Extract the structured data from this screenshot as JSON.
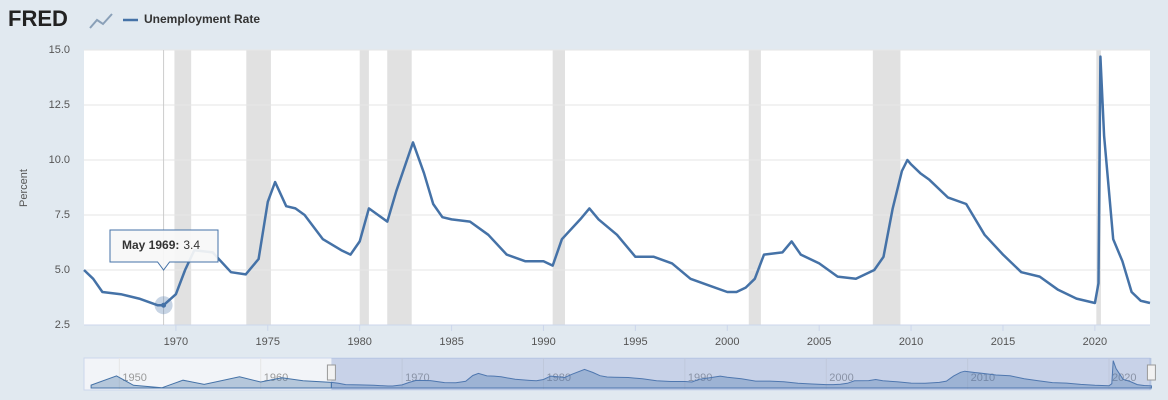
{
  "header": {
    "logo": "FRED"
  },
  "chart_data": {
    "type": "line",
    "y_label": "Percent",
    "series": [
      {
        "name": "Unemployment Rate",
        "color": "#4572a7",
        "values": [
          5.0,
          4.6,
          4.0,
          3.9,
          3.7,
          3.4,
          3.4,
          3.9,
          5.0,
          5.9,
          5.8,
          4.9,
          4.8,
          5.5,
          8.1,
          9.0,
          7.9,
          7.8,
          7.5,
          6.4,
          5.9,
          5.7,
          6.3,
          7.8,
          7.5,
          7.2,
          8.6,
          10.8,
          9.4,
          8.0,
          7.4,
          7.3,
          7.2,
          6.6,
          5.7,
          5.4,
          5.4,
          5.2,
          6.4,
          7.3,
          7.8,
          7.3,
          6.6,
          5.6,
          5.6,
          5.3,
          4.6,
          4.3,
          4.0,
          4.0,
          4.2,
          4.6,
          5.7,
          5.8,
          6.3,
          5.7,
          5.3,
          4.7,
          4.6,
          5.0,
          5.6,
          7.8,
          9.5,
          10.0,
          9.8,
          9.4,
          9.1,
          8.3,
          8.0,
          6.6,
          5.7,
          4.9,
          4.7,
          4.1,
          3.7,
          3.5,
          4.4,
          14.7,
          11.1,
          6.4,
          5.4,
          4.0,
          3.6,
          3.5
        ]
      }
    ],
    "x": [
      1965.0,
      1965.5,
      1966.0,
      1967.0,
      1968.0,
      1969.0,
      1969.33,
      1970.0,
      1970.5,
      1971.0,
      1972.0,
      1973.0,
      1973.8,
      1974.5,
      1975.0,
      1975.4,
      1976.0,
      1976.5,
      1977.0,
      1978.0,
      1979.0,
      1979.5,
      1980.0,
      1980.5,
      1981.0,
      1981.5,
      1982.0,
      1982.9,
      1983.5,
      1984.0,
      1984.5,
      1985.0,
      1986.0,
      1987.0,
      1988.0,
      1989.0,
      1990.0,
      1990.5,
      1991.0,
      1992.0,
      1992.5,
      1993.0,
      1994.0,
      1995.0,
      1996.0,
      1997.0,
      1998.0,
      1999.0,
      2000.0,
      2000.5,
      2001.0,
      2001.5,
      2002.0,
      2003.0,
      2003.5,
      2004.0,
      2005.0,
      2006.0,
      2007.0,
      2008.0,
      2008.5,
      2009.0,
      2009.5,
      2009.8,
      2010.0,
      2010.5,
      2011.0,
      2012.0,
      2013.0,
      2014.0,
      2015.0,
      2016.0,
      2017.0,
      2018.0,
      2019.0,
      2020.0,
      2020.2,
      2020.3,
      2020.5,
      2021.0,
      2021.5,
      2022.0,
      2022.5,
      2023.0
    ],
    "recessions": [
      [
        1969.92,
        1970.83
      ],
      [
        1973.83,
        1975.17
      ],
      [
        1980.0,
        1980.5
      ],
      [
        1981.5,
        1982.83
      ],
      [
        1990.5,
        1991.17
      ],
      [
        2001.17,
        2001.83
      ],
      [
        2007.92,
        2009.42
      ],
      [
        2020.08,
        2020.33
      ]
    ],
    "xlim": [
      1965.0,
      2023.0
    ],
    "xticks": [
      1970,
      1975,
      1980,
      1985,
      1990,
      1995,
      2000,
      2005,
      2010,
      2015,
      2020
    ],
    "ylim": [
      2.5,
      15.0
    ],
    "yticks": [
      2.5,
      {
        "value": 5.0,
        "label": "5.0"
      },
      7.5,
      {
        "value": 10.0,
        "label": "10.0"
      },
      12.5,
      {
        "value": 15.0,
        "label": "15.0"
      }
    ],
    "grid": true,
    "tooltip": {
      "label": "May 1969:",
      "x": 1969.33,
      "value": 3.4
    },
    "navigator": {
      "xlim": [
        1947.5,
        2022.9
      ],
      "xticks": [
        1950,
        1960,
        1970,
        1980,
        1990,
        2000,
        2010,
        2020
      ],
      "x": [
        1948.0,
        1949.8,
        1951.0,
        1953.0,
        1954.5,
        1956.0,
        1958.5,
        1960.0,
        1961.5,
        1963.0,
        1965.0
      ],
      "values": [
        3.8,
        7.9,
        3.7,
        2.6,
        6.0,
        4.1,
        7.5,
        5.2,
        7.1,
        5.7,
        5.0
      ]
    }
  }
}
